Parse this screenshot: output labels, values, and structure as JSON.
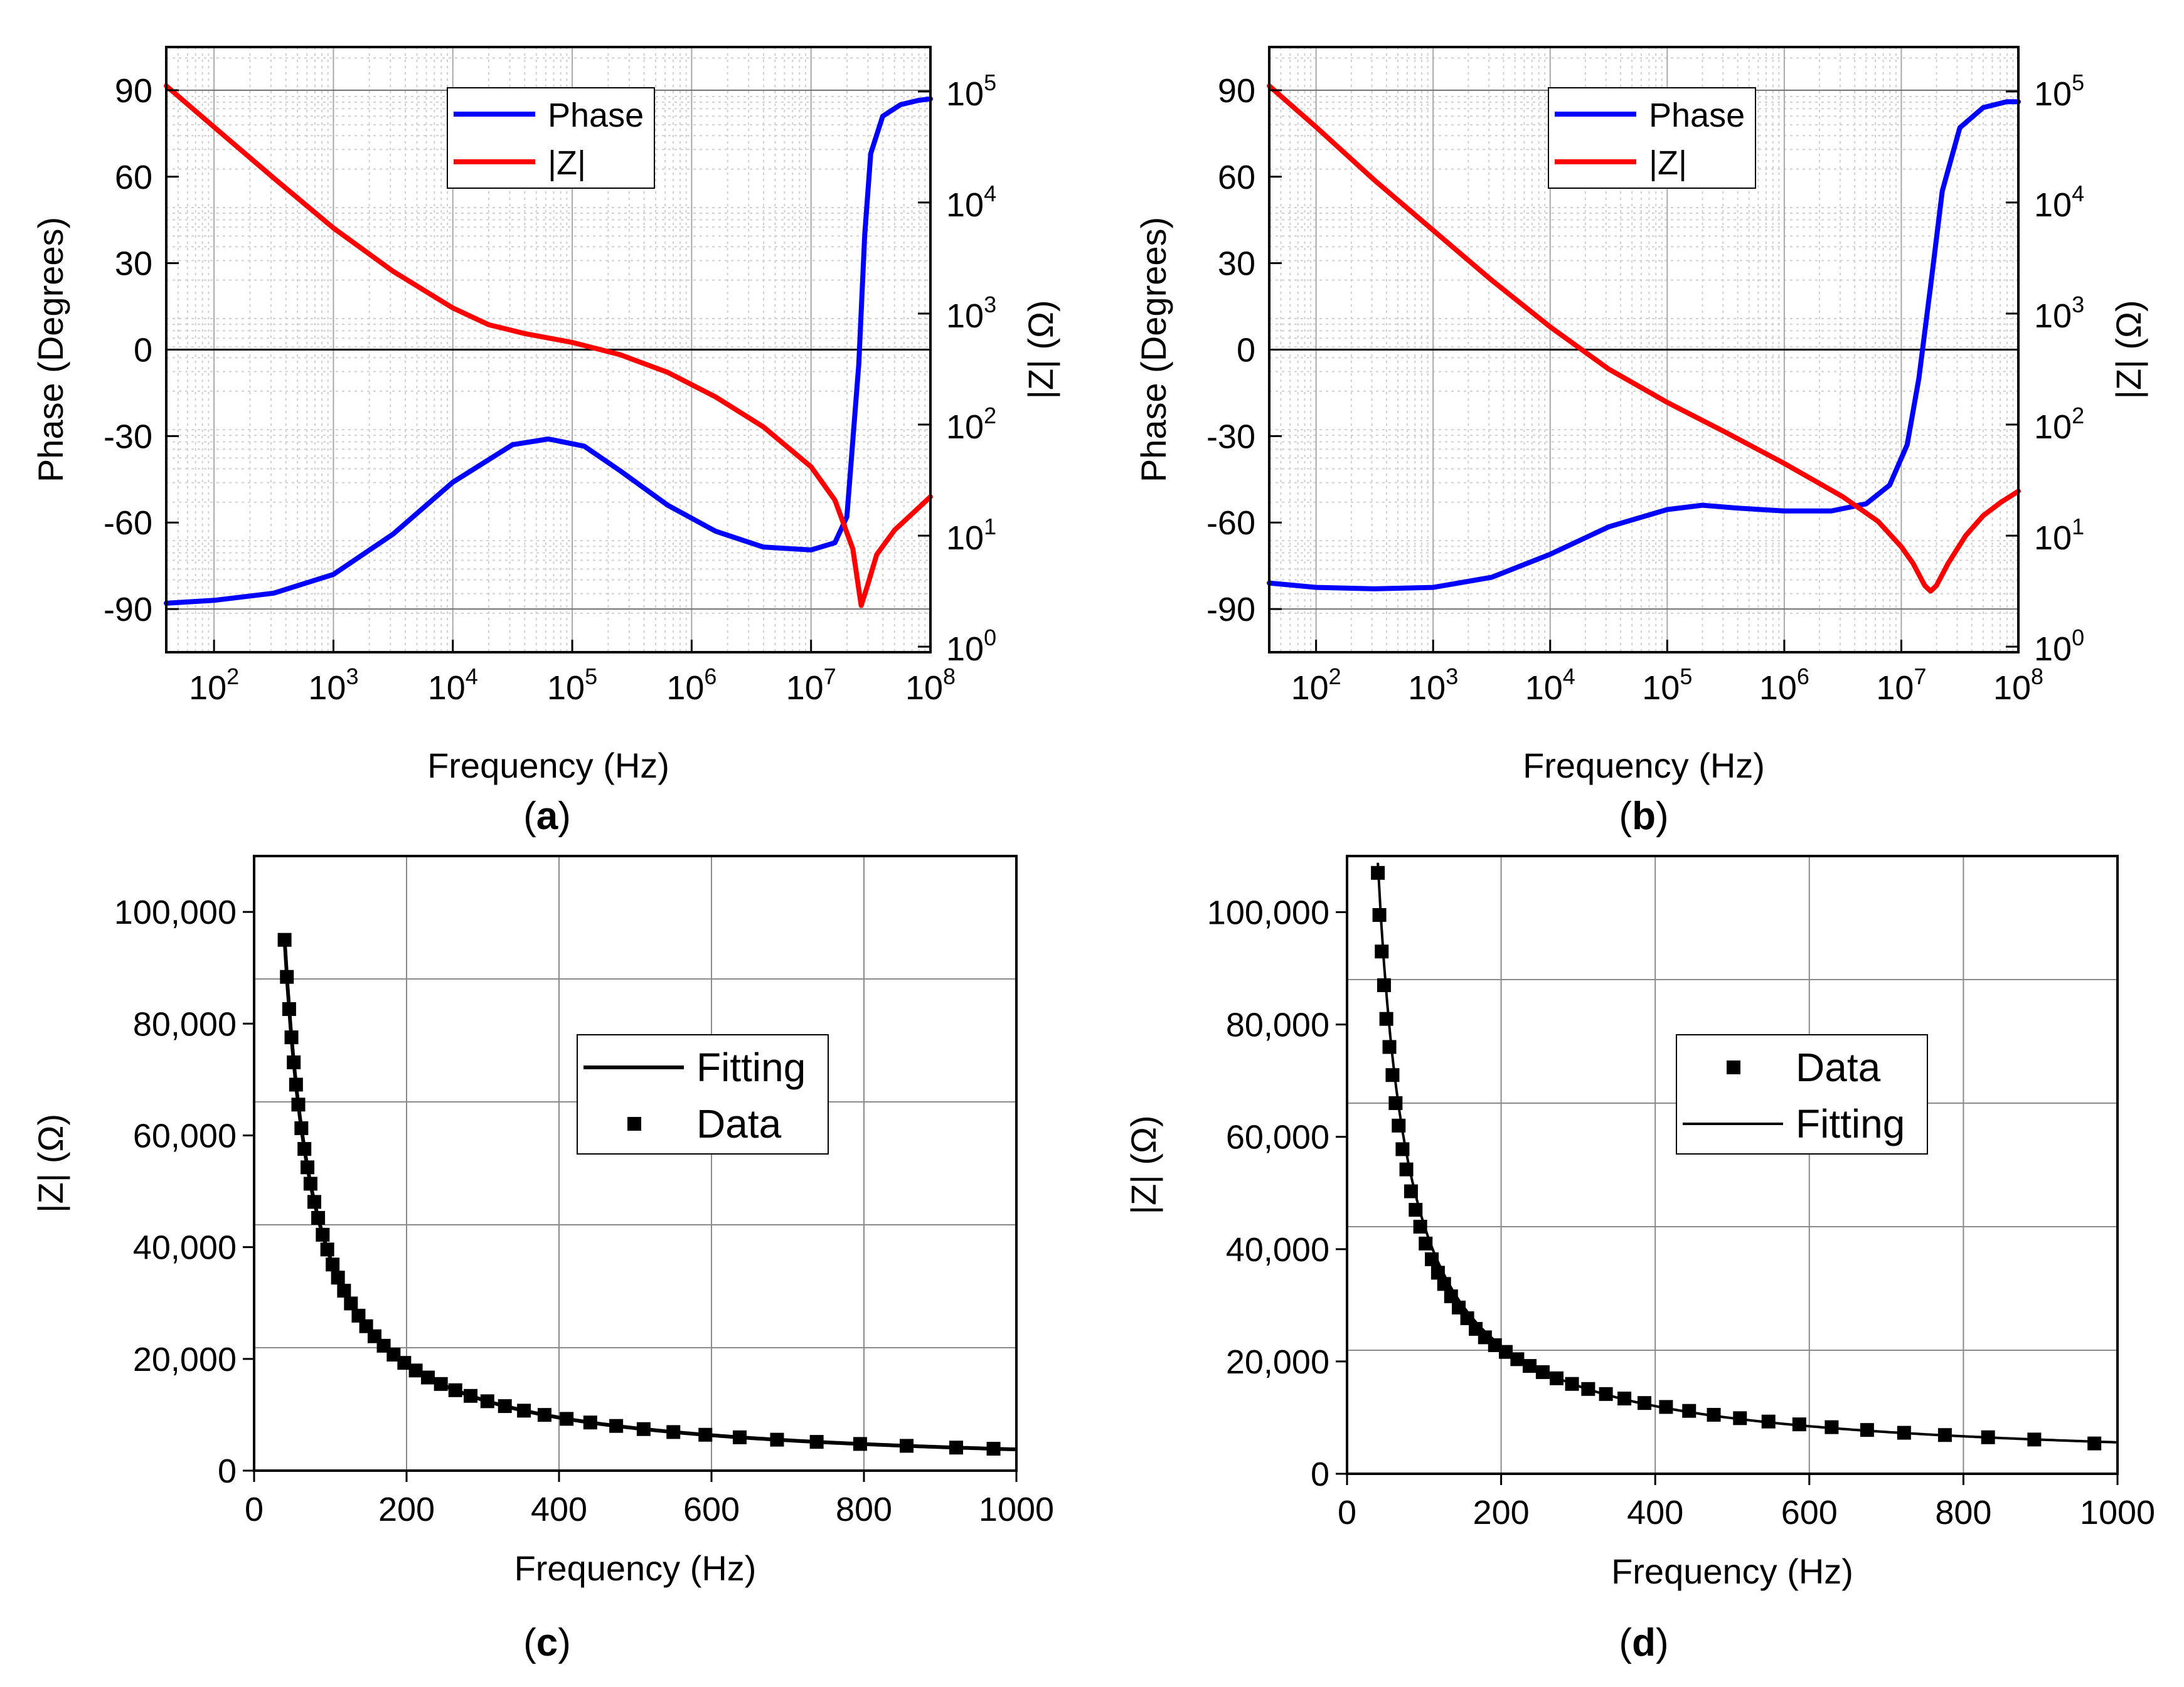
{
  "chart_data": [
    {
      "id": "a",
      "type": "line",
      "panel_label": "a",
      "xlabel": "Frequency (Hz)",
      "ylabel_left": "Phase (Degrees)",
      "ylabel_right": "|Z| (Ω)",
      "x_scale": "log10",
      "xlim_exp": [
        1.6,
        8.0
      ],
      "x_ticks": [
        {
          "exp": 2,
          "base": "10",
          "sup": "2"
        },
        {
          "exp": 3,
          "base": "10",
          "sup": "3"
        },
        {
          "exp": 4,
          "base": "10",
          "sup": "4"
        },
        {
          "exp": 5,
          "base": "10",
          "sup": "5"
        },
        {
          "exp": 6,
          "base": "10",
          "sup": "6"
        },
        {
          "exp": 7,
          "base": "10",
          "sup": "7"
        },
        {
          "exp": 8,
          "base": "10",
          "sup": "8"
        }
      ],
      "ylim_left": [
        -105,
        105
      ],
      "y_ticks_left": [
        "90",
        "60",
        "30",
        "0",
        "-30",
        "-60",
        "-90"
      ],
      "ylim_right_exp": [
        -0.05,
        5.4
      ],
      "y_ticks_right": [
        {
          "exp": 0,
          "base": "10",
          "sup": "0"
        },
        {
          "exp": 1,
          "base": "10",
          "sup": "1"
        },
        {
          "exp": 2,
          "base": "10",
          "sup": "2"
        },
        {
          "exp": 3,
          "base": "10",
          "sup": "3"
        },
        {
          "exp": 4,
          "base": "10",
          "sup": "4"
        },
        {
          "exp": 5,
          "base": "10",
          "sup": "5"
        }
      ],
      "grid": true,
      "legend": {
        "position": "top-center",
        "entries": [
          "Phase",
          "|Z|"
        ]
      },
      "series": [
        {
          "name": "Phase",
          "axis": "left",
          "color": "#0000ff",
          "log_x": [
            1.6,
            2.0,
            2.5,
            3.0,
            3.5,
            4.0,
            4.5,
            4.8,
            5.1,
            5.4,
            5.8,
            6.2,
            6.6,
            7.0,
            7.2,
            7.3,
            7.4,
            7.45,
            7.5,
            7.6,
            7.75,
            7.9,
            8.0
          ],
          "values": [
            -88,
            -87,
            -84.5,
            -78,
            -64,
            -46,
            -33,
            -31,
            -33.5,
            -42,
            -54,
            -63,
            -68.5,
            -69.5,
            -67,
            -58,
            -5,
            40,
            68,
            81,
            85,
            86.5,
            87
          ]
        },
        {
          "name": "|Z|",
          "axis": "right",
          "color": "#ff0000",
          "log_x": [
            1.6,
            2.0,
            2.5,
            3.0,
            3.5,
            4.0,
            4.3,
            4.6,
            5.0,
            5.4,
            5.8,
            6.2,
            6.6,
            7.0,
            7.2,
            7.35,
            7.42,
            7.47,
            7.55,
            7.7,
            7.85,
            8.0
          ],
          "log_values": [
            5.05,
            4.68,
            4.22,
            3.77,
            3.38,
            3.05,
            2.9,
            2.82,
            2.74,
            2.63,
            2.47,
            2.25,
            1.98,
            1.62,
            1.32,
            0.88,
            0.37,
            0.54,
            0.83,
            1.05,
            1.2,
            1.35
          ]
        }
      ]
    },
    {
      "id": "b",
      "type": "line",
      "panel_label": "b",
      "xlabel": "Frequency (Hz)",
      "ylabel_left": "Phase (Degrees)",
      "ylabel_right": "|Z| (Ω)",
      "x_scale": "log10",
      "xlim_exp": [
        1.6,
        8.0
      ],
      "x_ticks": [
        {
          "exp": 2,
          "base": "10",
          "sup": "2"
        },
        {
          "exp": 3,
          "base": "10",
          "sup": "3"
        },
        {
          "exp": 4,
          "base": "10",
          "sup": "4"
        },
        {
          "exp": 5,
          "base": "10",
          "sup": "5"
        },
        {
          "exp": 6,
          "base": "10",
          "sup": "6"
        },
        {
          "exp": 7,
          "base": "10",
          "sup": "7"
        },
        {
          "exp": 8,
          "base": "10",
          "sup": "8"
        }
      ],
      "ylim_left": [
        -105,
        105
      ],
      "y_ticks_left": [
        "90",
        "60",
        "30",
        "0",
        "-30",
        "-60",
        "-90"
      ],
      "ylim_right_exp": [
        -0.05,
        5.4
      ],
      "y_ticks_right": [
        {
          "exp": 0,
          "base": "10",
          "sup": "0"
        },
        {
          "exp": 1,
          "base": "10",
          "sup": "1"
        },
        {
          "exp": 2,
          "base": "10",
          "sup": "2"
        },
        {
          "exp": 3,
          "base": "10",
          "sup": "3"
        },
        {
          "exp": 4,
          "base": "10",
          "sup": "4"
        },
        {
          "exp": 5,
          "base": "10",
          "sup": "5"
        }
      ],
      "grid": true,
      "legend": {
        "position": "top-center",
        "entries": [
          "Phase",
          "|Z|"
        ]
      },
      "series": [
        {
          "name": "Phase",
          "axis": "left",
          "color": "#0000ff",
          "log_x": [
            1.6,
            2.0,
            2.5,
            3.0,
            3.5,
            4.0,
            4.5,
            5.0,
            5.3,
            5.6,
            6.0,
            6.4,
            6.7,
            6.9,
            7.05,
            7.15,
            7.25,
            7.35,
            7.5,
            7.7,
            7.9,
            8.0
          ],
          "values": [
            -81,
            -82.5,
            -83,
            -82.5,
            -79,
            -71,
            -61.5,
            -55.5,
            -54,
            -55,
            -56,
            -56,
            -53.5,
            -47,
            -33,
            -10,
            22,
            55,
            77,
            84,
            86,
            86
          ]
        },
        {
          "name": "|Z|",
          "axis": "right",
          "color": "#ff0000",
          "log_x": [
            1.6,
            2.0,
            2.5,
            3.0,
            3.5,
            4.0,
            4.5,
            5.0,
            5.5,
            6.0,
            6.5,
            6.8,
            7.0,
            7.1,
            7.2,
            7.25,
            7.3,
            7.4,
            7.55,
            7.7,
            7.85,
            8.0
          ],
          "log_values": [
            5.05,
            4.68,
            4.2,
            3.75,
            3.3,
            2.88,
            2.5,
            2.2,
            1.93,
            1.65,
            1.35,
            1.13,
            0.9,
            0.75,
            0.55,
            0.5,
            0.55,
            0.75,
            1.0,
            1.18,
            1.3,
            1.4
          ]
        }
      ]
    },
    {
      "id": "c",
      "type": "scatter",
      "panel_label": "c",
      "xlabel": "Frequency (Hz)",
      "ylabel": "|Z| (Ω)",
      "xlim": [
        0,
        1000
      ],
      "ylim": [
        0,
        110000
      ],
      "x_ticks": [
        "0",
        "200",
        "400",
        "600",
        "800",
        "1000"
      ],
      "y_ticks": [
        "0",
        "20,000",
        "40,000",
        "60,000",
        "80,000",
        "100,000"
      ],
      "grid": true,
      "legend": {
        "position": "center",
        "entries": [
          "Fitting",
          "Data"
        ]
      },
      "fit_constant": 3800000,
      "series": [
        {
          "name": "Fitting",
          "kind": "line",
          "formula": "y = 3800000 / x"
        },
        {
          "name": "Data",
          "kind": "markers",
          "x": [
            40,
            43,
            46,
            49,
            52,
            55,
            58,
            62,
            66,
            70,
            74,
            79,
            84,
            90,
            96,
            103,
            110,
            118,
            127,
            137,
            147,
            158,
            170,
            183,
            197,
            212,
            228,
            245,
            264,
            284,
            306,
            329,
            354,
            381,
            410,
            441,
            475,
            511,
            550,
            592,
            637,
            686,
            738,
            795,
            856,
            921,
            970
          ],
          "values": [
            95000,
            88372,
            82609,
            77551,
            73077,
            69091,
            65517,
            61290,
            57576,
            54286,
            51351,
            48101,
            45238,
            42222,
            39583,
            36893,
            34545,
            32203,
            29921,
            27737,
            25850,
            24051,
            22353,
            20765,
            19289,
            17925,
            16667,
            15510,
            14394,
            13380,
            12418,
            11550,
            10734,
            9974,
            9268,
            8617,
            8000,
            7436,
            6909,
            6419,
            5965,
            5539,
            5149,
            4780,
            4439,
            4126,
            3918
          ]
        }
      ]
    },
    {
      "id": "d",
      "type": "scatter",
      "panel_label": "d",
      "xlabel": "Frequency (Hz)",
      "ylabel": "|Z| (Ω)",
      "xlim": [
        0,
        1000
      ],
      "ylim": [
        0,
        110000
      ],
      "x_ticks": [
        "0",
        "200",
        "400",
        "600",
        "800",
        "1000"
      ],
      "y_ticks": [
        "0",
        "20,000",
        "40,000",
        "60,000",
        "80,000",
        "100,000"
      ],
      "grid": true,
      "legend": {
        "position": "center",
        "entries": [
          "Data",
          "Fitting"
        ]
      },
      "fit_constant": 4300000,
      "fit_offset": 1300,
      "series": [
        {
          "name": "Data",
          "kind": "markers",
          "x": [
            40,
            42,
            45,
            48,
            51,
            55,
            59,
            63,
            67,
            72,
            77,
            83,
            89,
            95,
            102,
            110,
            118,
            126,
            135,
            145,
            156,
            167,
            179,
            192,
            206,
            221,
            237,
            254,
            272,
            292,
            313,
            336,
            360,
            386,
            414,
            444,
            476,
            510,
            547,
            587,
            629,
            675,
            723,
            776,
            832,
            892,
            970
          ],
          "values": [
            107000,
            99500,
            93000,
            87000,
            81000,
            76000,
            71000,
            66000,
            62000,
            57800,
            54200,
            50300,
            47000,
            44000,
            41000,
            38200,
            35800,
            33800,
            31600,
            29600,
            27700,
            25800,
            24300,
            22900,
            21700,
            20400,
            19200,
            18100,
            17000,
            16000,
            15100,
            14200,
            13400,
            12600,
            11900,
            11200,
            10500,
            9900,
            9300,
            8800,
            8300,
            7800,
            7300,
            6900,
            6500,
            6100,
            5400
          ]
        },
        {
          "name": "Fitting",
          "kind": "line",
          "formula": "y = 4300000 / x + 1300"
        }
      ]
    }
  ]
}
